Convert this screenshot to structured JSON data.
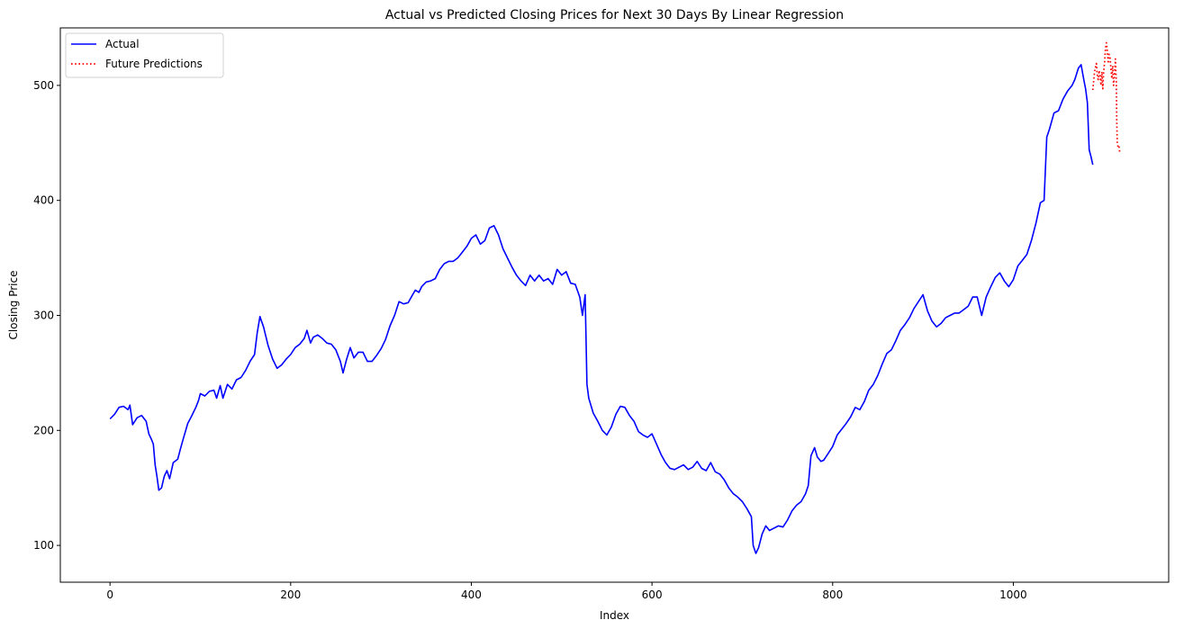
{
  "chart_data": {
    "type": "line",
    "title": "Actual vs Predicted Closing Prices for Next 30 Days By Linear Regression",
    "xlabel": "Index",
    "ylabel": "Closing Price",
    "xlim": [
      -55,
      1172
    ],
    "ylim": [
      68,
      550
    ],
    "xticks": [
      0,
      200,
      400,
      600,
      800,
      1000
    ],
    "yticks": [
      100,
      200,
      300,
      400,
      500
    ],
    "grid": false,
    "legend_position": "top-left",
    "series": [
      {
        "name": "Actual",
        "color": "#0000ff",
        "style": "solid",
        "points": [
          [
            0,
            210
          ],
          [
            5,
            214
          ],
          [
            10,
            220
          ],
          [
            15,
            221
          ],
          [
            20,
            218
          ],
          [
            22,
            222
          ],
          [
            25,
            205
          ],
          [
            30,
            211
          ],
          [
            35,
            213
          ],
          [
            40,
            208
          ],
          [
            43,
            197
          ],
          [
            46,
            192
          ],
          [
            48,
            188
          ],
          [
            50,
            170
          ],
          [
            52,
            160
          ],
          [
            54,
            148
          ],
          [
            57,
            150
          ],
          [
            60,
            160
          ],
          [
            63,
            165
          ],
          [
            66,
            158
          ],
          [
            70,
            172
          ],
          [
            75,
            175
          ],
          [
            78,
            184
          ],
          [
            82,
            195
          ],
          [
            86,
            206
          ],
          [
            90,
            212
          ],
          [
            95,
            220
          ],
          [
            98,
            226
          ],
          [
            100,
            232
          ],
          [
            105,
            230
          ],
          [
            110,
            234
          ],
          [
            115,
            235
          ],
          [
            118,
            228
          ],
          [
            122,
            239
          ],
          [
            125,
            228
          ],
          [
            130,
            240
          ],
          [
            135,
            236
          ],
          [
            140,
            244
          ],
          [
            145,
            246
          ],
          [
            150,
            252
          ],
          [
            155,
            260
          ],
          [
            160,
            266
          ],
          [
            163,
            285
          ],
          [
            166,
            299
          ],
          [
            170,
            290
          ],
          [
            175,
            274
          ],
          [
            180,
            262
          ],
          [
            185,
            254
          ],
          [
            190,
            257
          ],
          [
            195,
            262
          ],
          [
            200,
            266
          ],
          [
            205,
            272
          ],
          [
            210,
            275
          ],
          [
            215,
            280
          ],
          [
            218,
            287
          ],
          [
            222,
            276
          ],
          [
            225,
            281
          ],
          [
            230,
            283
          ],
          [
            235,
            280
          ],
          [
            240,
            276
          ],
          [
            245,
            275
          ],
          [
            250,
            270
          ],
          [
            255,
            260
          ],
          [
            258,
            250
          ],
          [
            262,
            262
          ],
          [
            266,
            272
          ],
          [
            270,
            263
          ],
          [
            275,
            268
          ],
          [
            280,
            268
          ],
          [
            285,
            260
          ],
          [
            290,
            260
          ],
          [
            295,
            265
          ],
          [
            300,
            271
          ],
          [
            305,
            279
          ],
          [
            310,
            291
          ],
          [
            315,
            300
          ],
          [
            320,
            312
          ],
          [
            325,
            310
          ],
          [
            330,
            311
          ],
          [
            335,
            318
          ],
          [
            338,
            322
          ],
          [
            342,
            320
          ],
          [
            345,
            325
          ],
          [
            350,
            329
          ],
          [
            355,
            330
          ],
          [
            360,
            332
          ],
          [
            365,
            340
          ],
          [
            370,
            345
          ],
          [
            375,
            347
          ],
          [
            380,
            347
          ],
          [
            385,
            350
          ],
          [
            390,
            355
          ],
          [
            395,
            360
          ],
          [
            400,
            367
          ],
          [
            405,
            370
          ],
          [
            410,
            362
          ],
          [
            415,
            365
          ],
          [
            420,
            376
          ],
          [
            425,
            378
          ],
          [
            430,
            370
          ],
          [
            435,
            358
          ],
          [
            440,
            350
          ],
          [
            445,
            342
          ],
          [
            450,
            335
          ],
          [
            455,
            330
          ],
          [
            460,
            326
          ],
          [
            465,
            335
          ],
          [
            470,
            330
          ],
          [
            475,
            335
          ],
          [
            480,
            330
          ],
          [
            485,
            332
          ],
          [
            490,
            327
          ],
          [
            495,
            340
          ],
          [
            500,
            335
          ],
          [
            505,
            338
          ],
          [
            510,
            328
          ],
          [
            515,
            327
          ],
          [
            520,
            316
          ],
          [
            523,
            300
          ],
          [
            526,
            318
          ],
          [
            528,
            240
          ],
          [
            530,
            228
          ],
          [
            535,
            215
          ],
          [
            540,
            208
          ],
          [
            545,
            200
          ],
          [
            550,
            196
          ],
          [
            555,
            203
          ],
          [
            560,
            214
          ],
          [
            565,
            221
          ],
          [
            570,
            220
          ],
          [
            575,
            213
          ],
          [
            580,
            208
          ],
          [
            585,
            199
          ],
          [
            590,
            196
          ],
          [
            595,
            194
          ],
          [
            600,
            197
          ],
          [
            605,
            188
          ],
          [
            610,
            179
          ],
          [
            615,
            172
          ],
          [
            620,
            167
          ],
          [
            625,
            166
          ],
          [
            630,
            168
          ],
          [
            635,
            170
          ],
          [
            640,
            166
          ],
          [
            645,
            168
          ],
          [
            650,
            173
          ],
          [
            655,
            167
          ],
          [
            660,
            165
          ],
          [
            665,
            172
          ],
          [
            670,
            164
          ],
          [
            675,
            162
          ],
          [
            680,
            157
          ],
          [
            685,
            150
          ],
          [
            690,
            145
          ],
          [
            695,
            142
          ],
          [
            700,
            138
          ],
          [
            705,
            132
          ],
          [
            710,
            125
          ],
          [
            712,
            100
          ],
          [
            715,
            93
          ],
          [
            718,
            98
          ],
          [
            722,
            110
          ],
          [
            726,
            117
          ],
          [
            730,
            113
          ],
          [
            735,
            115
          ],
          [
            740,
            117
          ],
          [
            745,
            116
          ],
          [
            750,
            122
          ],
          [
            755,
            130
          ],
          [
            760,
            135
          ],
          [
            765,
            138
          ],
          [
            770,
            145
          ],
          [
            773,
            152
          ],
          [
            776,
            178
          ],
          [
            780,
            185
          ],
          [
            783,
            177
          ],
          [
            787,
            173
          ],
          [
            790,
            174
          ],
          [
            795,
            180
          ],
          [
            800,
            186
          ],
          [
            805,
            196
          ],
          [
            810,
            201
          ],
          [
            815,
            206
          ],
          [
            820,
            212
          ],
          [
            825,
            220
          ],
          [
            830,
            218
          ],
          [
            835,
            225
          ],
          [
            840,
            235
          ],
          [
            845,
            240
          ],
          [
            850,
            248
          ],
          [
            855,
            258
          ],
          [
            860,
            267
          ],
          [
            865,
            270
          ],
          [
            870,
            278
          ],
          [
            875,
            287
          ],
          [
            880,
            292
          ],
          [
            885,
            298
          ],
          [
            890,
            306
          ],
          [
            895,
            312
          ],
          [
            900,
            318
          ],
          [
            905,
            304
          ],
          [
            910,
            295
          ],
          [
            915,
            290
          ],
          [
            920,
            293
          ],
          [
            925,
            298
          ],
          [
            930,
            300
          ],
          [
            935,
            302
          ],
          [
            940,
            302
          ],
          [
            945,
            305
          ],
          [
            950,
            308
          ],
          [
            955,
            316
          ],
          [
            960,
            316
          ],
          [
            965,
            300
          ],
          [
            970,
            316
          ],
          [
            975,
            325
          ],
          [
            980,
            333
          ],
          [
            985,
            337
          ],
          [
            990,
            330
          ],
          [
            995,
            325
          ],
          [
            1000,
            331
          ],
          [
            1005,
            343
          ],
          [
            1010,
            348
          ],
          [
            1015,
            353
          ],
          [
            1020,
            365
          ],
          [
            1025,
            380
          ],
          [
            1030,
            398
          ],
          [
            1034,
            400
          ],
          [
            1037,
            455
          ],
          [
            1040,
            462
          ],
          [
            1045,
            476
          ],
          [
            1050,
            478
          ],
          [
            1055,
            488
          ],
          [
            1060,
            495
          ],
          [
            1065,
            500
          ],
          [
            1068,
            505
          ],
          [
            1072,
            515
          ],
          [
            1075,
            518
          ],
          [
            1078,
            505
          ],
          [
            1080,
            497
          ],
          [
            1082,
            485
          ],
          [
            1084,
            444
          ],
          [
            1086,
            438
          ],
          [
            1088,
            431
          ]
        ]
      },
      {
        "name": "Future Predictions",
        "color": "#ff0000",
        "style": "dotted",
        "points": [
          [
            1088,
            496
          ],
          [
            1090,
            512
          ],
          [
            1092,
            519
          ],
          [
            1093,
            509
          ],
          [
            1094,
            505
          ],
          [
            1095,
            513
          ],
          [
            1096,
            508
          ],
          [
            1097,
            500
          ],
          [
            1098,
            512
          ],
          [
            1099,
            497
          ],
          [
            1100,
            512
          ],
          [
            1101,
            520
          ],
          [
            1102,
            532
          ],
          [
            1103,
            537
          ],
          [
            1104,
            530
          ],
          [
            1105,
            519
          ],
          [
            1106,
            527
          ],
          [
            1107,
            525
          ],
          [
            1108,
            515
          ],
          [
            1109,
            506
          ],
          [
            1110,
            517
          ],
          [
            1111,
            500
          ],
          [
            1112,
            509
          ],
          [
            1113,
            523
          ],
          [
            1114,
            504
          ],
          [
            1114.5,
            470
          ],
          [
            1115,
            451
          ],
          [
            1116,
            446
          ],
          [
            1117,
            447
          ],
          [
            1118,
            441
          ]
        ]
      }
    ]
  }
}
